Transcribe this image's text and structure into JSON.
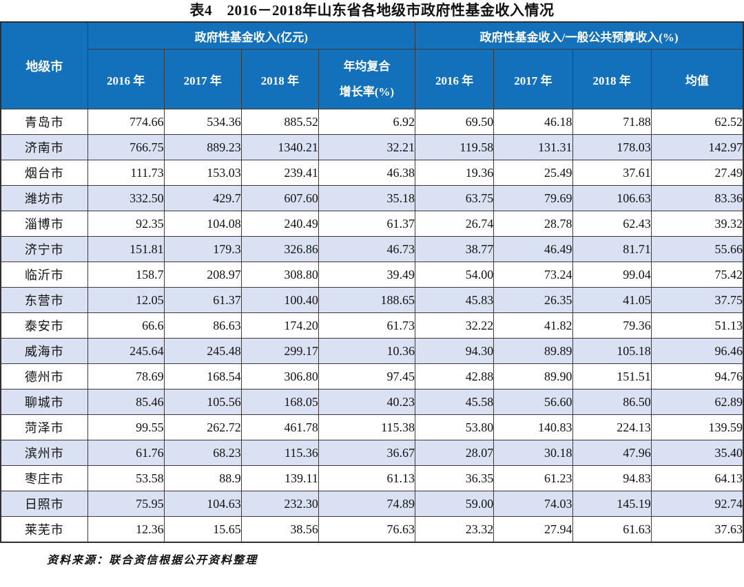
{
  "title": "表4　2016－2018年山东省各地级市政府性基金收入情况",
  "table": {
    "corner_header": "地级市",
    "group1": {
      "label": "政府性基金收入(亿元)",
      "columns": [
        "2016 年",
        "2017 年",
        "2018 年"
      ],
      "cagr_lines": [
        "年均复合",
        "增长率(%)"
      ]
    },
    "group2": {
      "label": "政府性基金收入/一般公共预算收入(%)",
      "columns": [
        "2016 年",
        "2017 年",
        "2018 年",
        "均值"
      ]
    },
    "rows": [
      {
        "city": "青岛市",
        "values": [
          "774.66",
          "534.36",
          "885.52",
          "6.92",
          "69.50",
          "46.18",
          "71.88",
          "62.52"
        ]
      },
      {
        "city": "济南市",
        "values": [
          "766.75",
          "889.23",
          "1340.21",
          "32.21",
          "119.58",
          "131.31",
          "178.03",
          "142.97"
        ]
      },
      {
        "city": "烟台市",
        "values": [
          "111.73",
          "153.03",
          "239.41",
          "46.38",
          "19.36",
          "25.49",
          "37.61",
          "27.49"
        ]
      },
      {
        "city": "潍坊市",
        "values": [
          "332.50",
          "429.7",
          "607.60",
          "35.18",
          "63.75",
          "79.69",
          "106.63",
          "83.36"
        ]
      },
      {
        "city": "淄博市",
        "values": [
          "92.35",
          "104.08",
          "240.49",
          "61.37",
          "26.74",
          "28.78",
          "62.43",
          "39.32"
        ]
      },
      {
        "city": "济宁市",
        "values": [
          "151.81",
          "179.3",
          "326.86",
          "46.73",
          "38.77",
          "46.49",
          "81.71",
          "55.66"
        ]
      },
      {
        "city": "临沂市",
        "values": [
          "158.7",
          "208.97",
          "308.80",
          "39.49",
          "54.00",
          "73.24",
          "99.04",
          "75.42"
        ]
      },
      {
        "city": "东营市",
        "values": [
          "12.05",
          "61.37",
          "100.40",
          "188.65",
          "45.83",
          "26.35",
          "41.05",
          "37.75"
        ]
      },
      {
        "city": "泰安市",
        "values": [
          "66.6",
          "86.63",
          "174.20",
          "61.73",
          "32.22",
          "41.82",
          "79.36",
          "51.13"
        ]
      },
      {
        "city": "威海市",
        "values": [
          "245.64",
          "245.48",
          "299.17",
          "10.36",
          "94.30",
          "89.89",
          "105.18",
          "96.46"
        ]
      },
      {
        "city": "德州市",
        "values": [
          "78.69",
          "168.54",
          "306.80",
          "97.45",
          "42.88",
          "89.90",
          "151.51",
          "94.76"
        ]
      },
      {
        "city": "聊城市",
        "values": [
          "85.46",
          "105.56",
          "168.05",
          "40.23",
          "45.58",
          "56.60",
          "86.50",
          "62.89"
        ]
      },
      {
        "city": "菏泽市",
        "values": [
          "99.55",
          "262.72",
          "461.78",
          "115.38",
          "53.80",
          "140.83",
          "224.13",
          "139.59"
        ]
      },
      {
        "city": "滨州市",
        "values": [
          "61.76",
          "68.23",
          "115.36",
          "36.67",
          "28.07",
          "30.18",
          "47.96",
          "35.40"
        ]
      },
      {
        "city": "枣庄市",
        "values": [
          "53.58",
          "88.9",
          "139.11",
          "61.13",
          "36.35",
          "61.23",
          "94.83",
          "64.13"
        ]
      },
      {
        "city": "日照市",
        "values": [
          "75.95",
          "104.63",
          "232.30",
          "74.89",
          "59.00",
          "74.03",
          "145.19",
          "92.74"
        ]
      },
      {
        "city": "莱芜市",
        "values": [
          "12.36",
          "15.65",
          "38.56",
          "76.63",
          "23.32",
          "27.94",
          "61.63",
          "37.63"
        ]
      }
    ]
  },
  "source_note": "资料来源：联合资信根据公开资料整理",
  "colors": {
    "header_bg": "#1371bb",
    "header_text": "#ffffff",
    "row_alt_bg": "#d9e1f3",
    "border": "#3a3a3a",
    "text": "#111111"
  }
}
